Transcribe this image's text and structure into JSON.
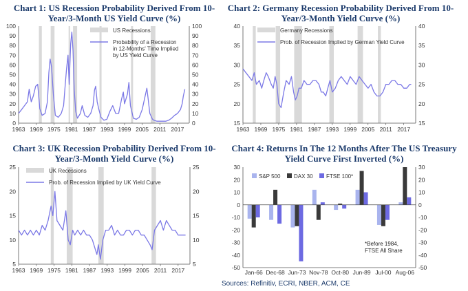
{
  "chart_data": [
    {
      "type": "line",
      "title": "Chart 1: US Recession Probability Derived From 10-Year/3-Month US Yield Curve (%)",
      "xlim": [
        1963,
        2021
      ],
      "ylim": [
        0,
        100
      ],
      "yticks": [
        0,
        10,
        20,
        30,
        40,
        50,
        60,
        70,
        80,
        90,
        100
      ],
      "xticks": [
        "1963",
        "1969",
        "1975",
        "1981",
        "1987",
        "1993",
        "1999",
        "2005",
        "2011",
        "2017"
      ],
      "recession_label": "US Recessions",
      "series_label": "Probability of a Recession in 12-Months' Time Implied by US Yield Curve",
      "recessions": [
        [
          1969.9,
          1970.9
        ],
        [
          1973.9,
          1975.2
        ],
        [
          1980.0,
          1980.5
        ],
        [
          1981.5,
          1982.9
        ],
        [
          1990.5,
          1991.2
        ],
        [
          2001.2,
          2001.9
        ],
        [
          2007.9,
          2009.5
        ]
      ],
      "series": [
        {
          "name": "US probability",
          "x": [
            1963,
            1964,
            1965,
            1966,
            1966.6,
            1967.3,
            1968,
            1968.8,
            1969.5,
            1970.2,
            1971,
            1972,
            1972.8,
            1973.3,
            1973.7,
            1974.2,
            1974.8,
            1975.5,
            1976.5,
            1977.5,
            1978.3,
            1978.8,
            1979.3,
            1979.8,
            1980.2,
            1980.7,
            1981.1,
            1981.5,
            1981.9,
            1982.4,
            1983,
            1984,
            1984.6,
            1985.5,
            1986.5,
            1987.5,
            1988.3,
            1988.8,
            1989.2,
            1989.7,
            1990.3,
            1991,
            1992,
            1993,
            1994,
            1995,
            1996,
            1997,
            1998,
            1998.6,
            1999,
            2000,
            2000.5,
            2001,
            2002,
            2003,
            2004,
            2005,
            2006,
            2006.6,
            2007,
            2007.6,
            2008.5,
            2009,
            2010,
            2011,
            2012,
            2013,
            2014,
            2015,
            2016,
            2017,
            2018,
            2018.6,
            2019,
            2019.5
          ],
          "values": [
            10,
            14,
            18,
            22,
            35,
            22,
            28,
            38,
            40,
            15,
            8,
            10,
            22,
            52,
            66,
            58,
            30,
            8,
            6,
            10,
            18,
            38,
            56,
            70,
            40,
            82,
            94,
            75,
            35,
            12,
            5,
            10,
            18,
            8,
            6,
            10,
            18,
            34,
            38,
            22,
            14,
            6,
            3,
            4,
            12,
            18,
            10,
            10,
            25,
            32,
            20,
            30,
            42,
            18,
            5,
            4,
            6,
            14,
            28,
            36,
            26,
            10,
            4,
            3,
            2,
            2,
            2,
            2,
            3,
            5,
            8,
            10,
            14,
            20,
            28,
            35
          ]
        }
      ]
    },
    {
      "type": "line",
      "title": "Chart 2: Germany Recession Probability Derived From 10-Year/3-Month Yield Curve (%)",
      "xlim": [
        1963,
        2021
      ],
      "ylim": [
        15,
        40
      ],
      "yticks": [
        15,
        20,
        25,
        30,
        35,
        40
      ],
      "xticks": [
        "1963",
        "1969",
        "1975",
        "1981",
        "1987",
        "1993",
        "1999",
        "2005",
        "2011",
        "2017"
      ],
      "recession_label": "Germany Recessions",
      "series_label": "Prob. of Recession Implied by German Yield Curve",
      "recessions": [
        [
          1966.3,
          1967.3
        ],
        [
          1974.0,
          1975.5
        ],
        [
          1980.2,
          1982.8
        ],
        [
          1992.0,
          1993.5
        ],
        [
          2001.5,
          2003.3
        ],
        [
          2008.3,
          2009.3
        ]
      ],
      "series": [
        {
          "name": "Germany probability",
          "x": [
            1963,
            1964,
            1965,
            1966,
            1966.8,
            1967.5,
            1968.5,
            1969.3,
            1970,
            1970.8,
            1971.5,
            1972.5,
            1973.2,
            1973.8,
            1974.4,
            1975,
            1975.8,
            1976.7,
            1977.5,
            1978.5,
            1979.3,
            1980,
            1980.6,
            1981.2,
            1981.8,
            1982.6,
            1983.5,
            1984.5,
            1985.5,
            1986.5,
            1987.5,
            1988.5,
            1989.3,
            1990,
            1990.8,
            1991.5,
            1992.2,
            1993,
            1994,
            1995,
            1996,
            1997,
            1998,
            1999,
            2000,
            2001,
            2002,
            2003,
            2004,
            2005,
            2006,
            2007,
            2008,
            2009,
            2010,
            2011,
            2012,
            2013,
            2014,
            2015,
            2016,
            2017,
            2018,
            2019,
            2019.5
          ],
          "values": [
            29,
            28,
            27,
            26,
            28,
            25,
            26,
            24,
            26,
            28,
            27,
            25,
            24,
            27,
            25,
            20,
            19,
            23,
            26,
            25,
            27,
            23,
            21,
            22,
            24,
            24,
            26,
            25,
            25,
            26,
            26,
            25,
            23,
            23,
            22,
            24,
            26,
            23,
            24,
            26,
            27,
            26,
            25,
            27,
            26,
            25,
            27,
            26,
            25,
            24,
            25,
            23,
            22,
            22,
            23,
            25,
            25,
            26,
            26,
            25,
            25,
            24,
            24,
            25,
            25
          ]
        }
      ]
    },
    {
      "type": "line",
      "title": "Chart 3: UK Recession Probability Derived From 10-Year/3-Month Yield Curve (%)",
      "xlim": [
        1963,
        2021
      ],
      "ylim": [
        5,
        25
      ],
      "yticks": [
        5,
        10,
        15,
        20,
        25
      ],
      "xticks": [
        "1963",
        "1969",
        "1975",
        "1981",
        "1987",
        "1993",
        "1999",
        "2005",
        "2011",
        "2017"
      ],
      "recession_label": "UK Recessions",
      "series_label": "Prob. of Recession Implied by UK Yield Curve",
      "recessions": [
        [
          1973.9,
          1974.9
        ],
        [
          1979.3,
          1981.3
        ],
        [
          1990.0,
          1991.8
        ],
        [
          2008.0,
          2009.5
        ]
      ],
      "series": [
        {
          "name": "UK probability",
          "x": [
            1963,
            1964,
            1965,
            1966,
            1967,
            1968,
            1969,
            1970,
            1971,
            1972,
            1973,
            1974,
            1974.6,
            1975.3,
            1976,
            1977,
            1978,
            1979,
            1979.8,
            1980.5,
            1981.3,
            1982,
            1983,
            1984,
            1985,
            1986,
            1987,
            1988,
            1989,
            1989.5,
            1990,
            1990.7,
            1991.5,
            1992.5,
            1993.5,
            1994.5,
            1995.5,
            1996.5,
            1997.5,
            1998.5,
            1999.5,
            2000.5,
            2001.5,
            2002.5,
            2003.5,
            2004.5,
            2005.5,
            2006.5,
            2007.5,
            2008.2,
            2009,
            2010,
            2011,
            2012,
            2013,
            2014,
            2015,
            2016,
            2017,
            2018,
            2019,
            2019.5
          ],
          "values": [
            12,
            11,
            12,
            11,
            12,
            11,
            12,
            11,
            13,
            12,
            14,
            17,
            15,
            20,
            14,
            13,
            12,
            16,
            10,
            9,
            12,
            11,
            12,
            11,
            12,
            11,
            11,
            10,
            8,
            7,
            9,
            6,
            10,
            12,
            12,
            13,
            11,
            12,
            11,
            11,
            12,
            12,
            11,
            12,
            12,
            11,
            11,
            10,
            9,
            8,
            12,
            13,
            14,
            12,
            14,
            13,
            12,
            12,
            11,
            11,
            11,
            11
          ]
        }
      ]
    },
    {
      "type": "bar",
      "title": "Chart 4: Returns In The 12 Months After The US Treasury Yield Curve First Inverted (%)",
      "categories": [
        "Jan-66",
        "Dec-68",
        "Jun-73",
        "Nov-78",
        "Oct-80",
        "Jun-89",
        "Jul-00",
        "Aug-06"
      ],
      "ylim": [
        -50,
        30
      ],
      "yticks": [
        -50,
        -40,
        -30,
        -20,
        -10,
        0,
        10,
        20,
        30
      ],
      "series": [
        {
          "name": "S&P 500",
          "values": [
            -11,
            -12,
            -18,
            12,
            -4,
            12,
            -16,
            2
          ]
        },
        {
          "name": "DAX 30",
          "values": [
            -18,
            12,
            -17,
            -12,
            1,
            27,
            -17,
            30
          ]
        },
        {
          "name": "FTSE 100*",
          "values": [
            -10,
            -15,
            -45,
            2,
            -3,
            10,
            -12,
            6
          ]
        }
      ],
      "note_line1": "*Before 1984,",
      "note_line2": "FTSE All Share"
    }
  ],
  "colors": {
    "line": "#7b78e6",
    "shade": "#d9d9d9",
    "sp500": "#a9b4ee",
    "dax": "#3a3a3a",
    "ftse": "#6d6ae2"
  },
  "source": "Sources: Refinitiv, ECRI, NBER, ACM, CE"
}
